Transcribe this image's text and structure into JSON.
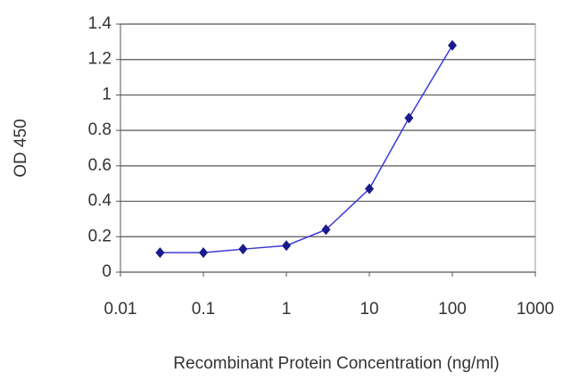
{
  "chart_data": {
    "type": "line",
    "x_label": "Recombinant Protein Concentration (ng/ml)",
    "y_label": "OD 450",
    "x": [
      0.03,
      0.1,
      0.3,
      1,
      3,
      10,
      30,
      100
    ],
    "series": [
      {
        "name": "OD 450",
        "color": "#1a1a8c",
        "values": [
          0.11,
          0.11,
          0.13,
          0.15,
          0.24,
          0.47,
          0.87,
          1.28
        ]
      }
    ],
    "xscale": "log",
    "xlim": [
      0.01,
      1000
    ],
    "xticks": [
      0.01,
      0.1,
      1,
      10,
      100,
      1000
    ],
    "ylim": [
      0,
      1.4
    ],
    "yticks": [
      0,
      0.2,
      0.4,
      0.6,
      0.8,
      1,
      1.2,
      1.4
    ],
    "grid": true
  }
}
